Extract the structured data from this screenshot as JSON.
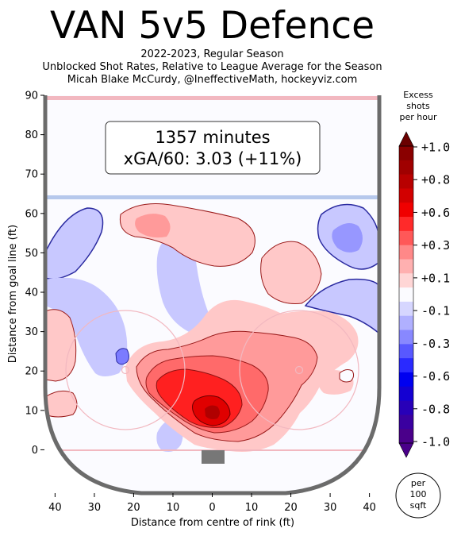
{
  "chart_data": {
    "type": "heatmap",
    "title": "VAN 5v5 Defence",
    "subtitle_lines": [
      "2022-2023, Regular Season",
      "Unblocked Shot Rates, Relative to League Average for the Season",
      "Micah Blake McCurdy, @IneffectiveMath, hockeyviz.com"
    ],
    "annotation_lines": [
      "1357 minutes",
      "xGA/60: 3.03 (+11%)"
    ],
    "xlabel": "Distance from centre of rink (ft)",
    "ylabel": "Distance from goal line (ft)",
    "x_ticks": [
      "40",
      "30",
      "20",
      "10",
      "0",
      "10",
      "20",
      "30",
      "40"
    ],
    "x_tick_values": [
      -40,
      -30,
      -20,
      -10,
      0,
      10,
      20,
      30,
      40
    ],
    "y_ticks": [
      "0",
      "10",
      "20",
      "30",
      "40",
      "50",
      "60",
      "70",
      "80",
      "90"
    ],
    "y_tick_values": [
      0,
      10,
      20,
      30,
      40,
      50,
      60,
      70,
      80,
      90
    ],
    "xlim": [
      -42.5,
      42.5
    ],
    "ylim": [
      -11,
      90
    ],
    "colorbar": {
      "title_lines": [
        "Excess",
        "shots",
        "per hour"
      ],
      "tick_labels": [
        "+1.0",
        "+0.8",
        "+0.6",
        "+0.3",
        "+0.1",
        "-0.1",
        "-0.3",
        "-0.6",
        "-0.8",
        "-1.0"
      ],
      "range": [
        -1.0,
        1.0
      ],
      "unit_badge_lines": [
        "per",
        "100",
        "sqft"
      ]
    },
    "hot_spots": [
      {
        "x": 0,
        "y": 9,
        "value": 1.0
      },
      {
        "x": -8,
        "y": 15,
        "value": 0.6
      },
      {
        "x": 10,
        "y": 20,
        "value": 0.3
      },
      {
        "x": -18,
        "y": 52,
        "value": 0.3
      },
      {
        "x": 22,
        "y": 35,
        "value": 0.1
      },
      {
        "x": -37,
        "y": 28,
        "value": 0.1
      }
    ],
    "cold_spots": [
      {
        "x": 35,
        "y": 55,
        "value": -0.3
      },
      {
        "x": -35,
        "y": 52,
        "value": -0.1
      },
      {
        "x": -22,
        "y": 24,
        "value": -0.3
      },
      {
        "x": -10,
        "y": 38,
        "value": -0.1
      },
      {
        "x": 34,
        "y": 40,
        "value": -0.1
      }
    ],
    "grid": false
  }
}
